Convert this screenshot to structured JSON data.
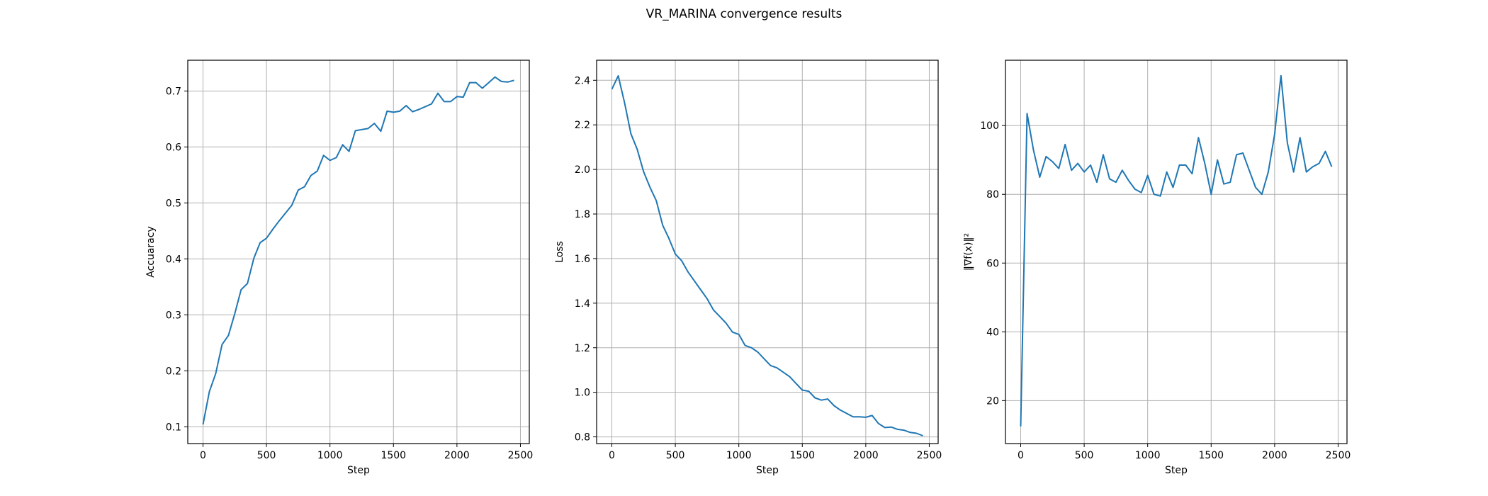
{
  "figure_title": "VR_MARINA convergence results",
  "chart_data": [
    {
      "type": "line",
      "xlabel": "Step",
      "ylabel": "Accuaracy",
      "xlim": [
        -120,
        2570
      ],
      "ylim": [
        0.07,
        0.755
      ],
      "xticks": [
        0,
        500,
        1000,
        1500,
        2000,
        2500
      ],
      "yticks": [
        0.1,
        0.2,
        0.3,
        0.4,
        0.5,
        0.6,
        0.7
      ],
      "ytick_labels": [
        "0.1",
        "0.2",
        "0.3",
        "0.4",
        "0.5",
        "0.6",
        "0.7"
      ],
      "grid": true,
      "color": "#1f77b4",
      "series": [
        {
          "x": [
            0,
            50,
            100,
            150,
            200,
            250,
            300,
            350,
            400,
            450,
            500,
            550,
            600,
            650,
            700,
            750,
            800,
            850,
            900,
            950,
            1000,
            1050,
            1100,
            1150,
            1200,
            1250,
            1300,
            1350,
            1400,
            1450,
            1500,
            1550,
            1600,
            1650,
            1700,
            1750,
            1800,
            1850,
            1900,
            1950,
            2000,
            2050,
            2100,
            2150,
            2200,
            2250,
            2300,
            2350,
            2400,
            2450
          ],
          "y": [
            0.104,
            0.163,
            0.195,
            0.247,
            0.263,
            0.302,
            0.345,
            0.356,
            0.401,
            0.429,
            0.437,
            0.453,
            0.468,
            0.482,
            0.496,
            0.523,
            0.529,
            0.549,
            0.557,
            0.585,
            0.576,
            0.581,
            0.604,
            0.592,
            0.629,
            0.631,
            0.633,
            0.642,
            0.628,
            0.664,
            0.662,
            0.664,
            0.674,
            0.663,
            0.667,
            0.672,
            0.677,
            0.696,
            0.681,
            0.681,
            0.69,
            0.689,
            0.715,
            0.715,
            0.705,
            0.715,
            0.725,
            0.717,
            0.716,
            0.719
          ]
        }
      ]
    },
    {
      "type": "line",
      "xlabel": "Step",
      "ylabel": "Loss",
      "xlim": [
        -120,
        2570
      ],
      "ylim": [
        0.77,
        2.49
      ],
      "xticks": [
        0,
        500,
        1000,
        1500,
        2000,
        2500
      ],
      "yticks": [
        0.8,
        1.0,
        1.2,
        1.4,
        1.6,
        1.8,
        2.0,
        2.2,
        2.4
      ],
      "ytick_labels": [
        "0.8",
        "1.0",
        "1.2",
        "1.4",
        "1.6",
        "1.8",
        "2.0",
        "2.2",
        "2.4"
      ],
      "grid": true,
      "color": "#1f77b4",
      "series": [
        {
          "x": [
            0,
            50,
            100,
            150,
            200,
            250,
            300,
            350,
            400,
            450,
            500,
            550,
            600,
            650,
            700,
            750,
            800,
            850,
            900,
            950,
            1000,
            1050,
            1100,
            1150,
            1200,
            1250,
            1300,
            1350,
            1400,
            1450,
            1500,
            1550,
            1600,
            1650,
            1700,
            1750,
            1800,
            1850,
            1900,
            1950,
            2000,
            2050,
            2100,
            2150,
            2200,
            2250,
            2300,
            2350,
            2400,
            2450
          ],
          "y": [
            2.36,
            2.42,
            2.3,
            2.16,
            2.09,
            1.99,
            1.92,
            1.86,
            1.75,
            1.69,
            1.62,
            1.59,
            1.54,
            1.5,
            1.46,
            1.42,
            1.37,
            1.34,
            1.31,
            1.27,
            1.26,
            1.21,
            1.2,
            1.18,
            1.15,
            1.12,
            1.11,
            1.09,
            1.07,
            1.04,
            1.01,
            1.005,
            0.975,
            0.965,
            0.97,
            0.94,
            0.92,
            0.905,
            0.89,
            0.89,
            0.888,
            0.896,
            0.86,
            0.842,
            0.844,
            0.834,
            0.83,
            0.82,
            0.816,
            0.805
          ]
        }
      ]
    },
    {
      "type": "line",
      "xlabel": "Step",
      "ylabel": "‖∇f(x)‖²",
      "xlim": [
        -120,
        2570
      ],
      "ylim": [
        7.5,
        119
      ],
      "xticks": [
        0,
        500,
        1000,
        1500,
        2000,
        2500
      ],
      "yticks": [
        20,
        40,
        60,
        80,
        100
      ],
      "ytick_labels": [
        "20",
        "40",
        "60",
        "80",
        "100"
      ],
      "grid": true,
      "color": "#1f77b4",
      "series": [
        {
          "x": [
            0,
            50,
            100,
            150,
            200,
            250,
            300,
            350,
            400,
            450,
            500,
            550,
            600,
            650,
            700,
            750,
            800,
            850,
            900,
            950,
            1000,
            1050,
            1100,
            1150,
            1200,
            1250,
            1300,
            1350,
            1400,
            1450,
            1500,
            1550,
            1600,
            1650,
            1700,
            1750,
            1800,
            1850,
            1900,
            1950,
            2000,
            2050,
            2100,
            2150,
            2200,
            2250,
            2300,
            2350,
            2400,
            2450
          ],
          "y": [
            12.5,
            103.5,
            93.0,
            85.0,
            91.0,
            89.5,
            87.5,
            94.5,
            87.0,
            89.0,
            86.5,
            88.5,
            83.5,
            91.5,
            84.5,
            83.5,
            87.0,
            84.0,
            81.5,
            80.5,
            85.5,
            80.0,
            79.5,
            86.5,
            82.0,
            88.5,
            88.5,
            86.0,
            96.5,
            89.0,
            80.0,
            90.0,
            83.0,
            83.5,
            91.5,
            92.0,
            87.0,
            82.0,
            80.0,
            86.5,
            97.5,
            114.5,
            95.0,
            86.5,
            96.5,
            86.5,
            88.0,
            89.0,
            92.5,
            88.0
          ]
        }
      ]
    }
  ]
}
